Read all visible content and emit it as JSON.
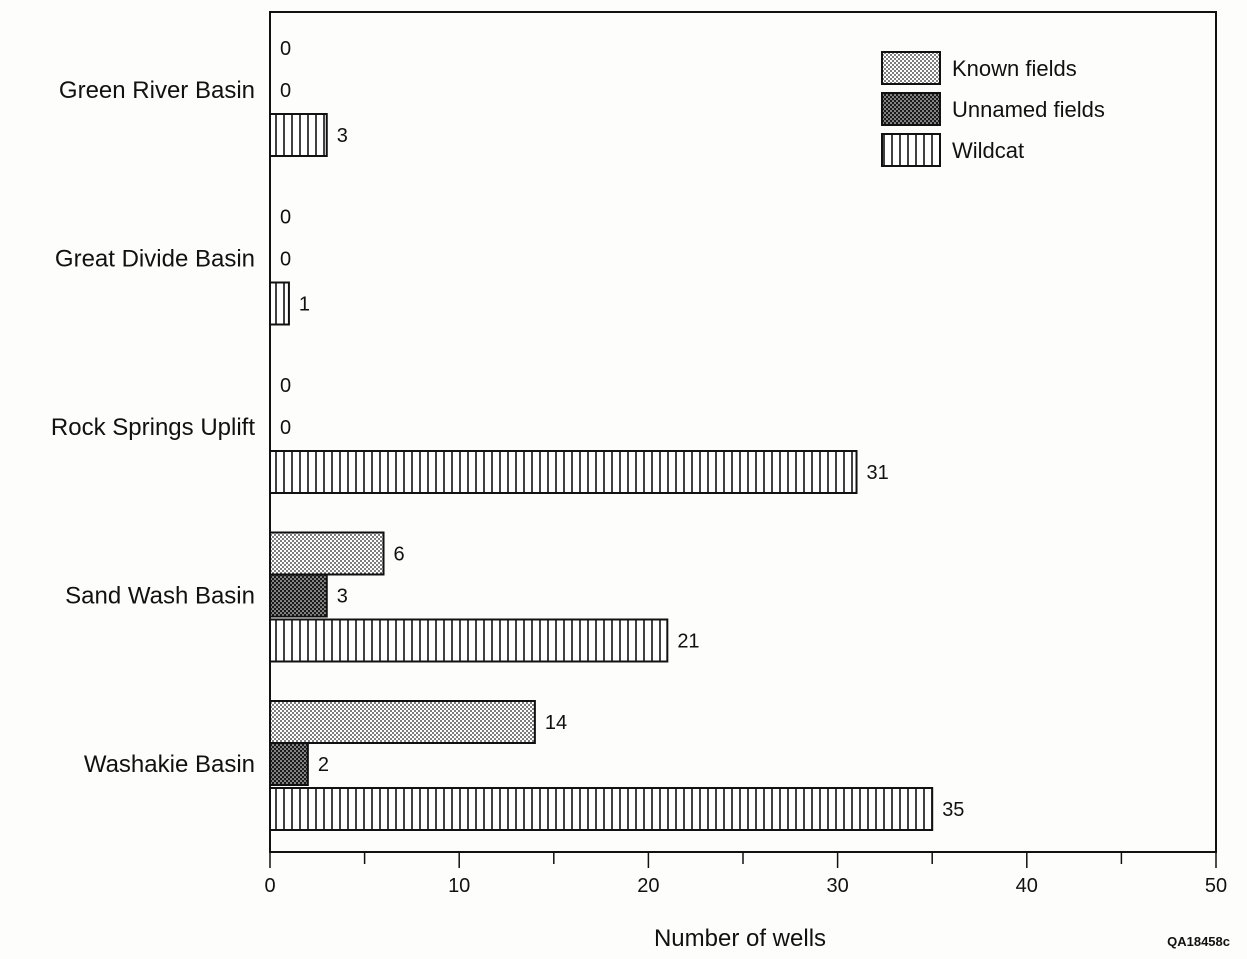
{
  "chart_data": {
    "type": "bar",
    "orientation": "horizontal",
    "title": "",
    "xlabel": "Number of wells",
    "ylabel": "",
    "xlim": [
      0,
      50
    ],
    "x_ticks": [
      0,
      10,
      20,
      30,
      40,
      50
    ],
    "x_tick_labels": [
      "0",
      "10",
      "20",
      "30",
      "40",
      "50"
    ],
    "grid": false,
    "legend_position": "top-right",
    "categories": [
      "Green River Basin",
      "Great Divide Basin",
      "Rock Springs Uplift",
      "Sand Wash Basin",
      "Washakie Basin"
    ],
    "series": [
      {
        "name": "Known fields",
        "values": [
          0,
          0,
          0,
          6,
          14
        ],
        "pattern": "dots"
      },
      {
        "name": "Unnamed fields",
        "values": [
          0,
          0,
          0,
          3,
          2
        ],
        "pattern": "dense-crosshatch"
      },
      {
        "name": "Wildcat",
        "values": [
          3,
          1,
          31,
          21,
          35
        ],
        "pattern": "vertical-lines"
      }
    ],
    "data_labels": [
      [
        "0",
        "0",
        "3"
      ],
      [
        "0",
        "0",
        "1"
      ],
      [
        "0",
        "0",
        "31"
      ],
      [
        "6",
        "3",
        "21"
      ],
      [
        "14",
        "2",
        "35"
      ]
    ],
    "colors": {
      "ink": "#111111",
      "paper": "#fdfdfb"
    }
  },
  "figure_code": "QA18458c"
}
